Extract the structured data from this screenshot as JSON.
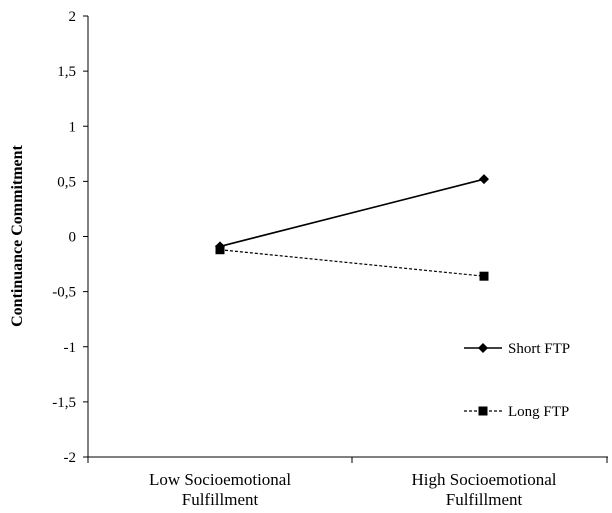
{
  "chart_data": {
    "type": "line",
    "title": "",
    "xlabel": "",
    "ylabel": "Continuance  Commitment",
    "categories": [
      [
        "Low Socioemotional",
        "Fulfillment"
      ],
      [
        "High Socioemotional",
        "Fulfillment"
      ]
    ],
    "ylim": [
      -2,
      2
    ],
    "yticks": [
      2,
      1.5,
      1,
      0.5,
      0,
      -0.5,
      -1,
      -1.5,
      -2
    ],
    "ytick_labels": [
      "2",
      "1,5",
      "1",
      "0,5",
      "0",
      "-0,5",
      "-1",
      "-1,5",
      "-2"
    ],
    "grid": false,
    "legend_position": "right",
    "series": [
      {
        "name": "Short FTP",
        "values": [
          -0.09,
          0.52
        ],
        "marker": "diamond",
        "line": "solid",
        "color": "#000000"
      },
      {
        "name": "Long FTP",
        "values": [
          -0.12,
          -0.36
        ],
        "marker": "square",
        "line": "dashed",
        "color": "#000000"
      }
    ]
  }
}
